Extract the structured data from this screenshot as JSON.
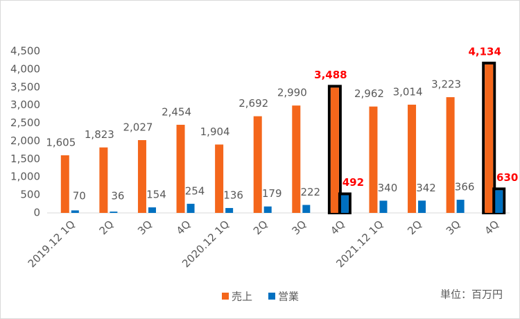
{
  "chart_data": {
    "type": "bar",
    "categories": [
      "2019.12 1Q",
      "2Q",
      "3Q",
      "4Q",
      "2020.12 1Q",
      "2Q",
      "3Q",
      "4Q",
      "2021.12 1Q",
      "2Q",
      "3Q",
      "4Q"
    ],
    "series": [
      {
        "name": "売上",
        "color": "#f4661b",
        "values": [
          1605,
          1823,
          2027,
          2454,
          1904,
          2692,
          2990,
          3488,
          2962,
          3014,
          3223,
          4134
        ],
        "value_labels": [
          "1,605",
          "1,823",
          "2,027",
          "2,454",
          "1,904",
          "2,692",
          "2,990",
          "3,488",
          "2,962",
          "3,014",
          "3,223",
          "4,134"
        ]
      },
      {
        "name": "営業",
        "color": "#0070c0",
        "values": [
          70,
          36,
          154,
          254,
          136,
          179,
          222,
          492,
          340,
          342,
          366,
          630
        ]
      }
    ],
    "ylim": [
      0,
      4500
    ],
    "yticks": [
      0,
      500,
      {
        "value": 1000,
        "label": "1,000"
      },
      {
        "value": 1500,
        "label": "1,500"
      },
      {
        "value": 2000,
        "label": "2,000"
      },
      {
        "value": 2500,
        "label": "2,500"
      },
      {
        "value": 3000,
        "label": "3,000"
      },
      {
        "value": 3500,
        "label": "3,500"
      },
      {
        "value": 4000,
        "label": "4,000"
      },
      {
        "value": 4500,
        "label": "4,500"
      }
    ],
    "grid": false,
    "highlight": [
      7,
      11
    ],
    "highlight_color": "#ff0000",
    "annotation": "単位：百万円"
  }
}
